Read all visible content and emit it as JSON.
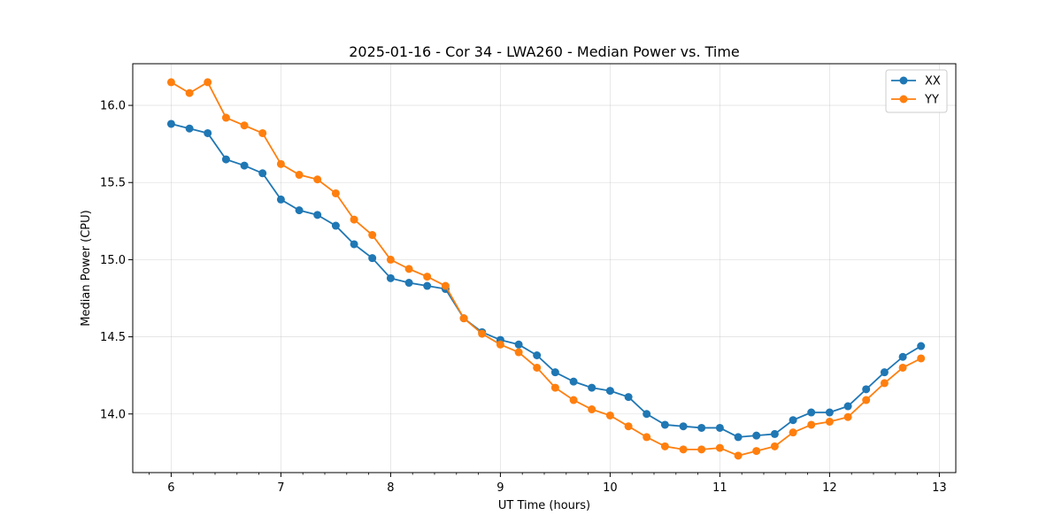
{
  "chart_data": {
    "type": "line",
    "title": "2025-01-16 - Cor 34 - LWA260 - Median Power vs. Time",
    "xlabel": "UT Time (hours)",
    "ylabel": "Median Power (CPU)",
    "xlim": [
      5.65,
      13.15
    ],
    "ylim": [
      13.62,
      16.27
    ],
    "xticks": [
      6,
      7,
      8,
      9,
      10,
      11,
      12,
      13
    ],
    "yticks": [
      14.0,
      14.5,
      15.0,
      15.5,
      16.0
    ],
    "xtick_labels": [
      "6",
      "7",
      "8",
      "9",
      "10",
      "11",
      "12",
      "13"
    ],
    "ytick_labels": [
      "14.0",
      "14.5",
      "15.0",
      "15.5",
      "16.0"
    ],
    "grid": true,
    "legend_position": "top-right",
    "x": [
      6.0,
      6.167,
      6.333,
      6.5,
      6.667,
      6.833,
      7.0,
      7.167,
      7.333,
      7.5,
      7.667,
      7.833,
      8.0,
      8.167,
      8.333,
      8.5,
      8.667,
      8.833,
      9.0,
      9.167,
      9.333,
      9.5,
      9.667,
      9.833,
      10.0,
      10.167,
      10.333,
      10.5,
      10.667,
      10.833,
      11.0,
      11.167,
      11.333,
      11.5,
      11.667,
      11.833,
      12.0,
      12.167,
      12.333,
      12.5,
      12.667,
      12.833
    ],
    "series": [
      {
        "name": "XX",
        "color": "#1f77b4",
        "values": [
          15.88,
          15.85,
          15.82,
          15.65,
          15.61,
          15.56,
          15.39,
          15.32,
          15.29,
          15.22,
          15.1,
          15.01,
          14.88,
          14.85,
          14.83,
          14.81,
          14.62,
          14.53,
          14.48,
          14.45,
          14.38,
          14.27,
          14.21,
          14.17,
          14.15,
          14.11,
          14.0,
          13.93,
          13.92,
          13.91,
          13.91,
          13.85,
          13.86,
          13.87,
          13.96,
          14.01,
          14.01,
          14.05,
          14.16,
          14.27,
          14.37,
          14.44
        ]
      },
      {
        "name": "YY",
        "color": "#ff7f0e",
        "values": [
          16.15,
          16.08,
          16.15,
          15.92,
          15.87,
          15.82,
          15.62,
          15.55,
          15.52,
          15.43,
          15.26,
          15.16,
          15.0,
          14.94,
          14.89,
          14.83,
          14.62,
          14.52,
          14.45,
          14.4,
          14.3,
          14.17,
          14.09,
          14.03,
          13.99,
          13.92,
          13.85,
          13.79,
          13.77,
          13.77,
          13.78,
          13.73,
          13.76,
          13.79,
          13.88,
          13.93,
          13.95,
          13.98,
          14.09,
          14.2,
          14.3,
          14.36
        ]
      }
    ]
  }
}
